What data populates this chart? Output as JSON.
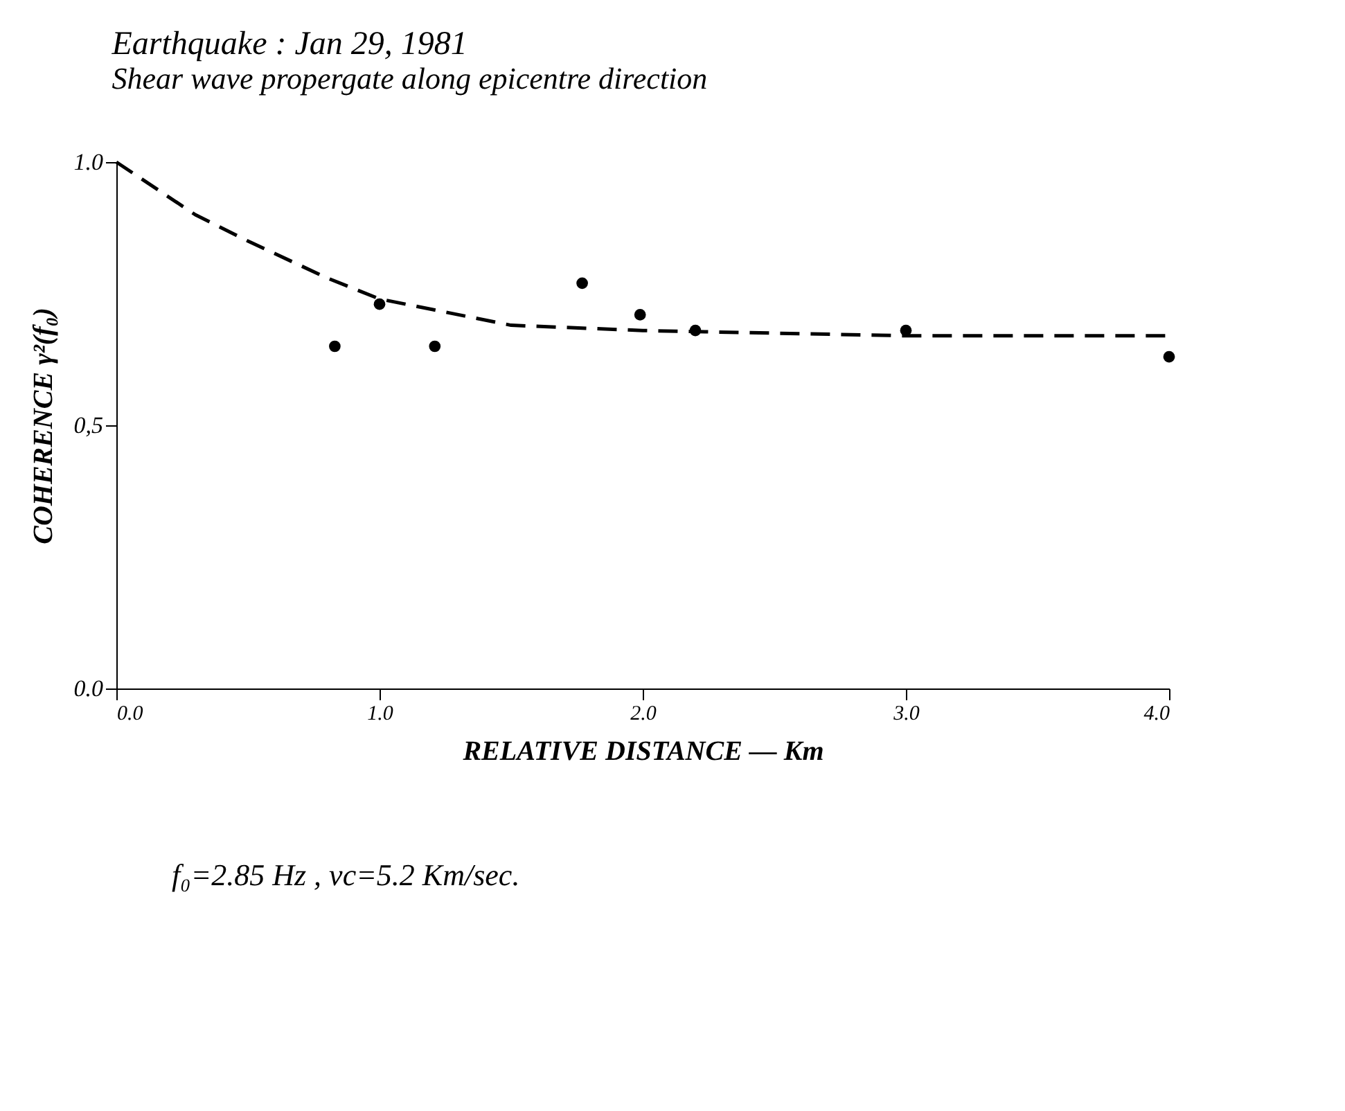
{
  "chart_data": {
    "type": "scatter",
    "title": "Earthquake : Jan 29, 1981",
    "subtitle": "Shear wave propergate along epicentre direction",
    "xlabel": "RELATIVE DISTANCE — Km",
    "ylabel": "COHERENCE γ²(f₀)",
    "xlim": [
      0,
      4.0
    ],
    "ylim": [
      0,
      1.0
    ],
    "xticks": [
      {
        "value": 0,
        "label": "0.0"
      },
      {
        "value": 1,
        "label": "1.0"
      },
      {
        "value": 2,
        "label": "2.0"
      },
      {
        "value": 3,
        "label": "3.0"
      },
      {
        "value": 4,
        "label": "4.0"
      }
    ],
    "yticks": [
      {
        "value": 0,
        "label": "0.0"
      },
      {
        "value": 0.5,
        "label": "0,5"
      },
      {
        "value": 1,
        "label": "1.0"
      }
    ],
    "grid": false,
    "series": [
      {
        "marker": "circle",
        "color": "#000000",
        "x": [
          0.83,
          1.0,
          1.21,
          1.77,
          1.99,
          2.2,
          3.0,
          4.0
        ],
        "values": [
          0.65,
          0.73,
          0.65,
          0.77,
          0.71,
          0.68,
          0.68,
          0.63
        ]
      },
      {
        "type": "line",
        "line_style": "dashed",
        "color": "#000000",
        "x": [
          0,
          0.3,
          0.5,
          0.8,
          1.0,
          1.2,
          1.5,
          2.0,
          3.0,
          4.0
        ],
        "values": [
          1.0,
          0.9,
          0.85,
          0.78,
          0.74,
          0.72,
          0.69,
          0.68,
          0.67,
          0.67
        ]
      }
    ],
    "annotations": [
      "f₀=2.85 Hz , vc=5.2 Km/sec."
    ]
  }
}
